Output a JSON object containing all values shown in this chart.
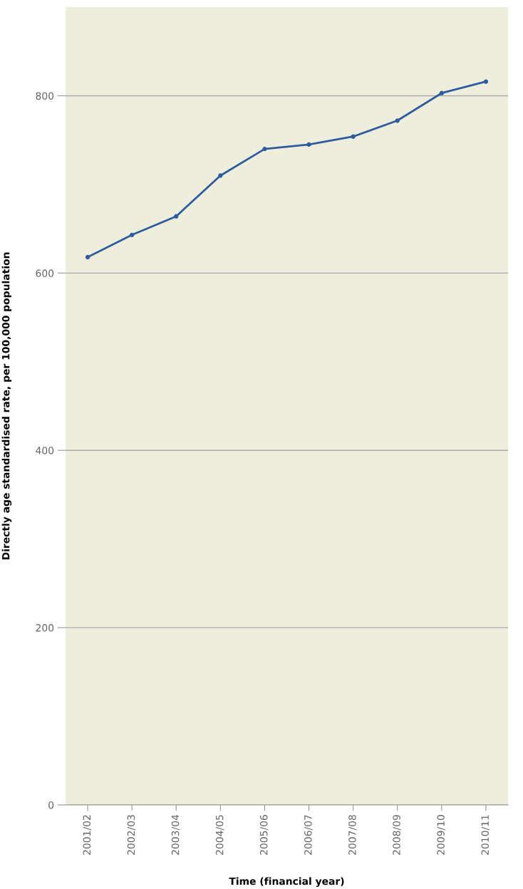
{
  "chart_data": {
    "type": "line",
    "xlabel": "Time (financial year)",
    "ylabel": "Directly age standardised rate, per 100,000 population",
    "categories": [
      "2001/02",
      "2002/03",
      "2003/04",
      "2004/05",
      "2005/06",
      "2006/07",
      "2007/08",
      "2008/09",
      "2009/10",
      "2010/11"
    ],
    "series": [
      {
        "color": "#2e5c9e",
        "values": [
          618,
          643,
          664,
          710,
          740,
          745,
          754,
          772,
          803,
          816
        ]
      }
    ],
    "ylim": [
      0,
      900
    ],
    "yticks": [
      0,
      200,
      400,
      600,
      800
    ],
    "grid": "y",
    "marker": "circle",
    "line_style": "solid"
  }
}
